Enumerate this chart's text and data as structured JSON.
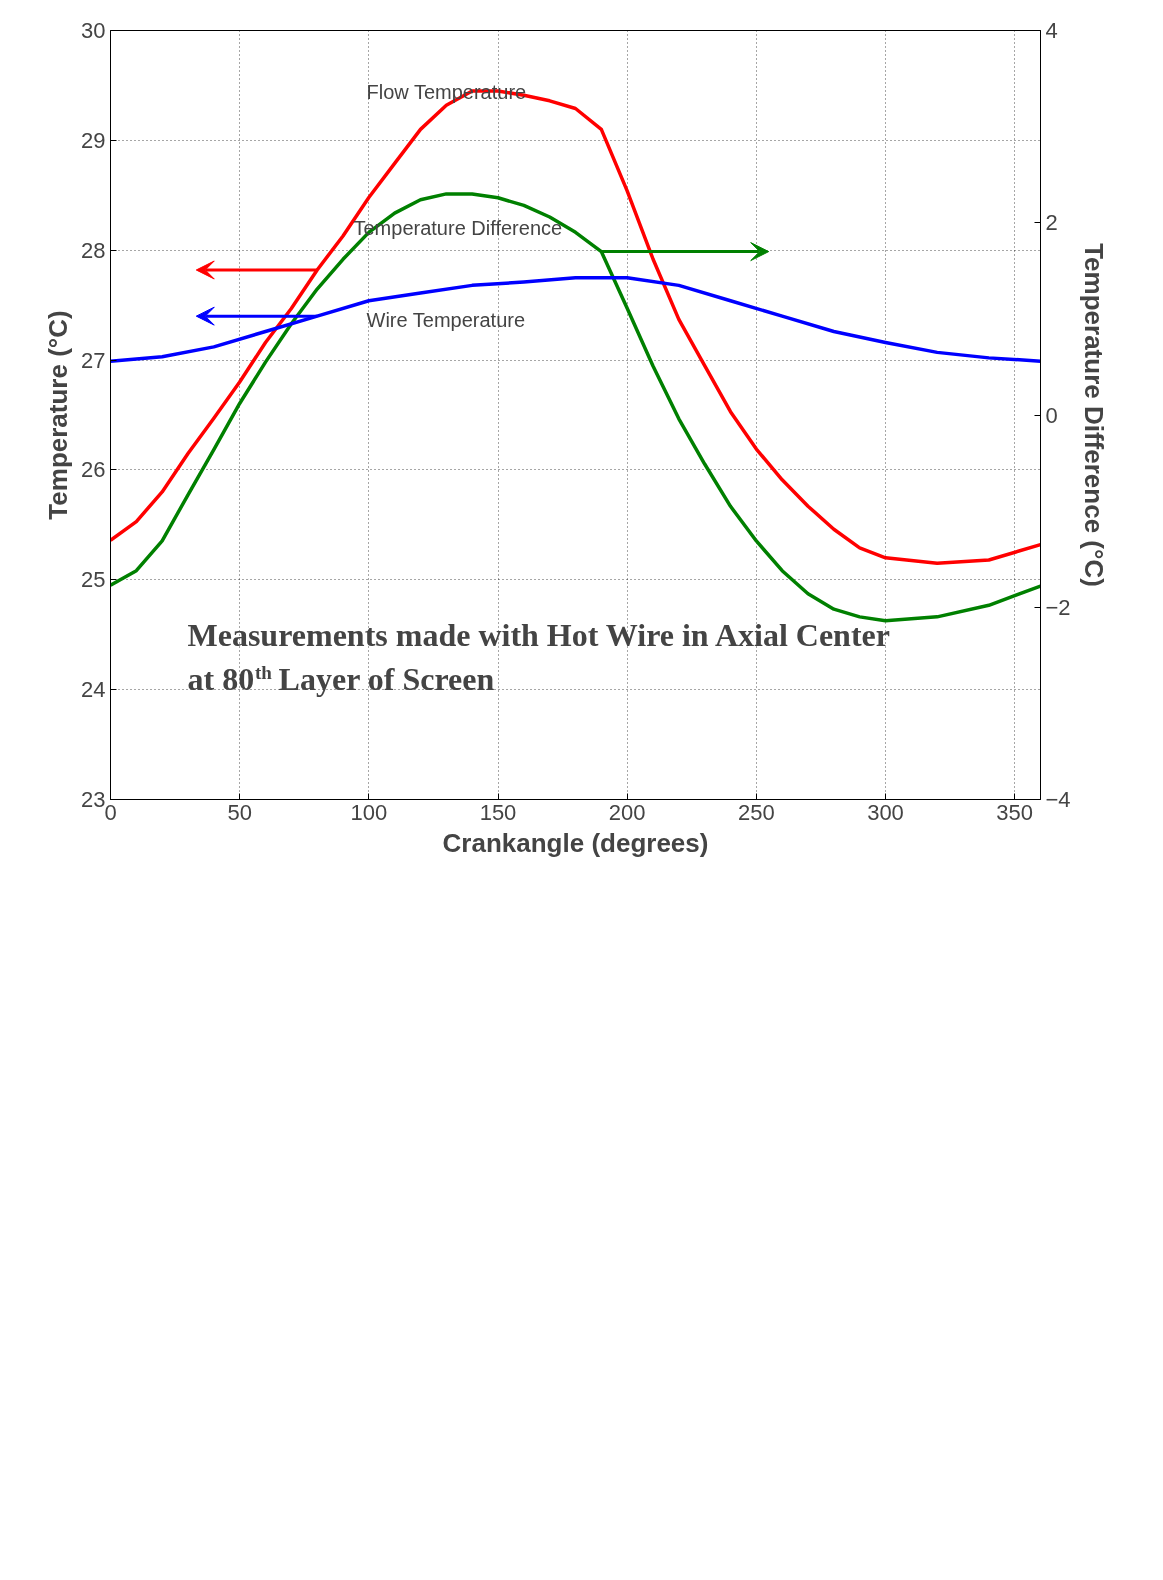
{
  "chart_data": {
    "type": "line",
    "xlabel": "Crankangle (degrees)",
    "ylabel": "Temperature (°C)",
    "y2label": "Temperature Difference (°C)",
    "x": [
      0,
      10,
      20,
      30,
      40,
      50,
      60,
      70,
      80,
      90,
      100,
      110,
      120,
      130,
      140,
      150,
      160,
      170,
      180,
      190,
      200,
      210,
      220,
      230,
      240,
      250,
      260,
      270,
      280,
      290,
      300,
      320,
      340,
      360
    ],
    "series": [
      {
        "color": "#ff0000",
        "values": [
          25.36,
          25.53,
          25.8,
          26.15,
          26.47,
          26.8,
          27.16,
          27.47,
          27.82,
          28.13,
          28.48,
          28.79,
          29.1,
          29.32,
          29.45,
          29.45,
          29.41,
          29.36,
          29.29,
          29.1,
          28.54,
          27.92,
          27.37,
          26.95,
          26.53,
          26.19,
          25.91,
          25.67,
          25.46,
          25.29,
          25.2,
          25.15,
          25.18,
          25.32
        ]
      },
      {
        "color": "#008000",
        "axis": "y2",
        "values": [
          -1.77,
          -1.62,
          -1.31,
          -0.83,
          -0.36,
          0.12,
          0.55,
          0.95,
          1.31,
          1.62,
          1.9,
          2.1,
          2.24,
          2.3,
          2.3,
          2.26,
          2.18,
          2.06,
          1.9,
          1.7,
          1.11,
          0.51,
          -0.04,
          -0.51,
          -0.95,
          -1.31,
          -1.62,
          -1.86,
          -2.02,
          -2.1,
          -2.14,
          -2.1,
          -1.98,
          -1.78
        ]
      },
      {
        "color": "#0000ff",
        "x": [
          0,
          20,
          40,
          60,
          80,
          100,
          120,
          140,
          160,
          180,
          200,
          220,
          240,
          260,
          280,
          300,
          320,
          340,
          360
        ],
        "values": [
          26.99,
          27.03,
          27.12,
          27.26,
          27.4,
          27.54,
          27.61,
          27.68,
          27.71,
          27.75,
          27.75,
          27.68,
          27.54,
          27.4,
          27.26,
          27.16,
          27.07,
          27.02,
          26.99
        ]
      }
    ],
    "xlim": [
      0,
      360
    ],
    "xticks": [
      0,
      50,
      100,
      150,
      200,
      250,
      300,
      350
    ],
    "ylim": [
      23,
      30
    ],
    "yticks": [
      23,
      24,
      25,
      26,
      27,
      28,
      29,
      30
    ],
    "y2lim": [
      -4,
      4
    ],
    "y2ticks": [
      -4,
      -2,
      0,
      2,
      4
    ],
    "grid": true,
    "line_style": "solid",
    "marker": "none",
    "annotations": [
      "Flow Temperature",
      "Temperature Difference",
      "Wire Temperature",
      "Measurements made with Hot Wire in Axial Center",
      "at 80$^{th}$ Layer of Screen"
    ]
  }
}
